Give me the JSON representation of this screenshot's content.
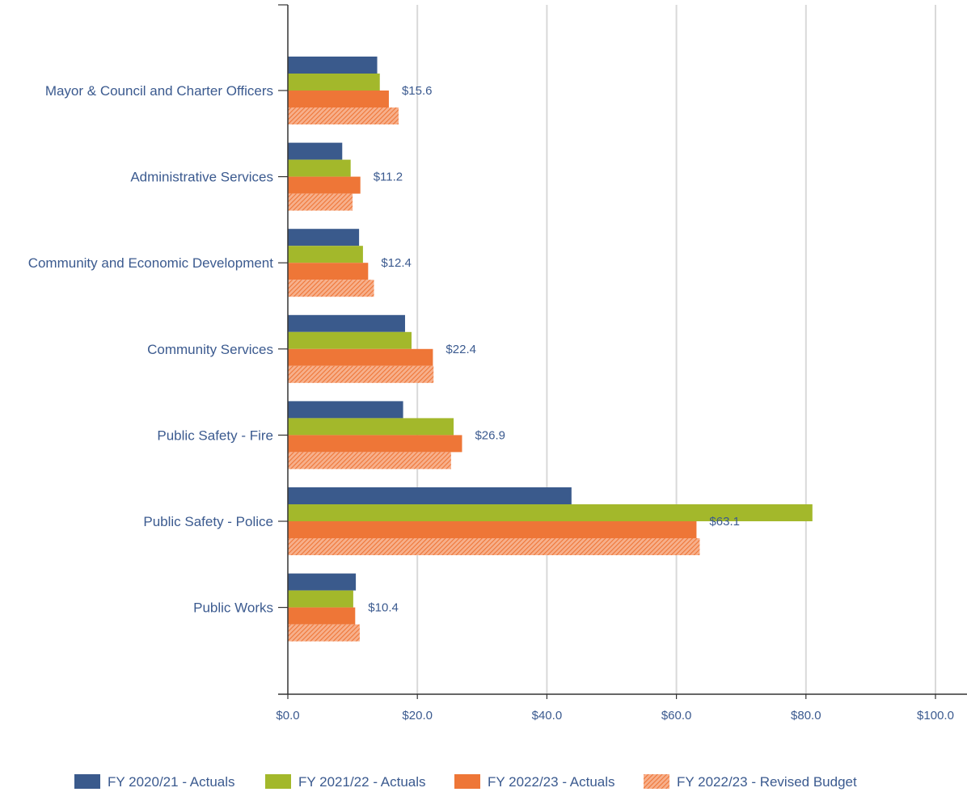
{
  "chart_data": {
    "type": "bar",
    "orientation": "horizontal",
    "categories": [
      "Mayor & Council and Charter Officers",
      "Administrative Services",
      "Community and Economic Development",
      "Community Services",
      "Public Safety - Fire",
      "Public Safety - Police",
      "Public Works"
    ],
    "series": [
      {
        "name": "FY 2020/21 - Actuals",
        "color": "#3a5a8c",
        "pattern": "solid",
        "values": [
          13.8,
          8.4,
          11.0,
          18.1,
          17.8,
          43.8,
          10.5
        ]
      },
      {
        "name": "FY 2021/22 - Actuals",
        "color": "#a3b82b",
        "pattern": "solid",
        "values": [
          14.2,
          9.7,
          11.6,
          19.1,
          25.6,
          81.0,
          10.1
        ]
      },
      {
        "name": "FY 2022/23 - Actuals",
        "color": "#ee7637",
        "pattern": "solid",
        "values": [
          15.6,
          11.2,
          12.4,
          22.4,
          26.9,
          63.1,
          10.4
        ]
      },
      {
        "name": "FY 2022/23 - Revised Budget",
        "color": "#ee7637",
        "pattern": "hatched",
        "values": [
          17.1,
          10.0,
          13.3,
          22.5,
          25.2,
          63.6,
          11.1
        ]
      }
    ],
    "data_labels": [
      "$15.6",
      "$11.2",
      "$12.4",
      "$22.4",
      "$26.9",
      "$63.1",
      "$10.4"
    ],
    "data_label_series": 2,
    "x_ticks": [
      "$0.0",
      "$20.0",
      "$40.0",
      "$60.0",
      "$80.0",
      "$100.0"
    ],
    "xlim": [
      0,
      100
    ],
    "grid": true,
    "legend_position": "bottom",
    "title": "",
    "xlabel": "",
    "ylabel": ""
  }
}
